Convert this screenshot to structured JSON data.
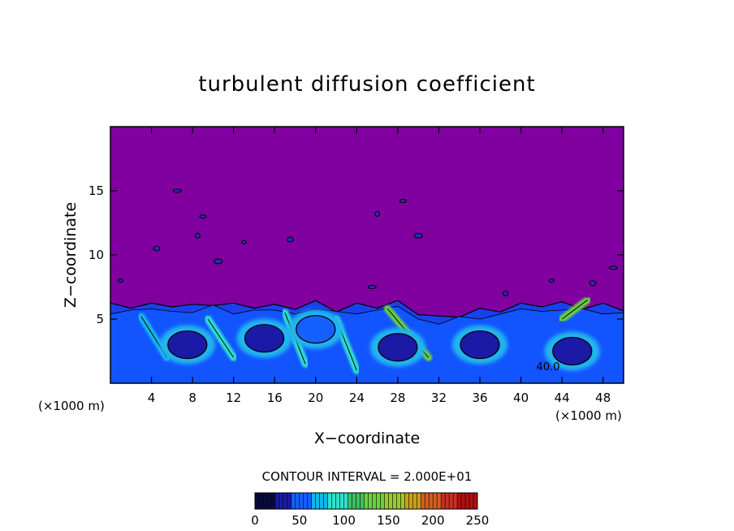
{
  "chart_data": {
    "type": "heatmap",
    "title": "turbulent diffusion coefficient",
    "xlabel": "X−coordinate",
    "ylabel": "Z−coordinate",
    "x_unit_left": "(×1000 m)",
    "x_unit_right": "(×1000 m)",
    "xlim": [
      0,
      50
    ],
    "ylim": [
      0,
      20
    ],
    "x_ticks": [
      4,
      8,
      12,
      16,
      20,
      24,
      28,
      32,
      36,
      40,
      44,
      48
    ],
    "y_ticks": [
      5,
      10,
      15
    ],
    "background_value": 0,
    "turbulent_layer_top": [
      [
        0,
        6.0
      ],
      [
        2,
        6.1
      ],
      [
        4,
        6.0
      ],
      [
        6,
        6.2
      ],
      [
        8,
        5.9
      ],
      [
        10,
        6.3
      ],
      [
        12,
        6.0
      ],
      [
        14,
        6.1
      ],
      [
        16,
        5.9
      ],
      [
        18,
        6.0
      ],
      [
        20,
        6.2
      ],
      [
        22,
        5.8
      ],
      [
        24,
        6.0
      ],
      [
        26,
        6.1
      ],
      [
        28,
        6.2
      ],
      [
        30,
        5.6
      ],
      [
        32,
        5.0
      ],
      [
        34,
        5.4
      ],
      [
        36,
        5.6
      ],
      [
        38,
        5.8
      ],
      [
        40,
        6.0
      ],
      [
        42,
        6.2
      ],
      [
        44,
        6.1
      ],
      [
        46,
        6.0
      ],
      [
        48,
        6.0
      ],
      [
        50,
        5.9
      ]
    ],
    "eddy_cores": [
      {
        "x": 7.5,
        "z": 3.0,
        "value": 40
      },
      {
        "x": 15.0,
        "z": 3.5,
        "value": 40
      },
      {
        "x": 20.0,
        "z": 4.2,
        "value": 60
      },
      {
        "x": 28.0,
        "z": 2.8,
        "value": 40
      },
      {
        "x": 36.0,
        "z": 3.0,
        "value": 40
      },
      {
        "x": 45.0,
        "z": 2.5,
        "value": 40
      }
    ],
    "filaments": [
      {
        "x1": 9.5,
        "z1": 5.0,
        "x2": 12.0,
        "z2": 2.0,
        "value": 100
      },
      {
        "x1": 17.0,
        "z1": 5.5,
        "x2": 19.0,
        "z2": 1.5,
        "value": 90
      },
      {
        "x1": 27.0,
        "z1": 5.8,
        "x2": 31.0,
        "z2": 2.0,
        "value": 130
      },
      {
        "x1": 44.0,
        "z1": 5.0,
        "x2": 46.5,
        "z2": 6.5,
        "value": 140
      },
      {
        "x1": 3.0,
        "z1": 5.2,
        "x2": 5.5,
        "z2": 2.0,
        "value": 80
      },
      {
        "x1": 22.0,
        "z1": 5.0,
        "x2": 24.0,
        "z2": 1.0,
        "value": 90
      }
    ],
    "scattered_patches": [
      {
        "x": 1.0,
        "z": 8.0
      },
      {
        "x": 4.5,
        "z": 10.5
      },
      {
        "x": 6.5,
        "z": 15.0
      },
      {
        "x": 8.5,
        "z": 11.5
      },
      {
        "x": 9.0,
        "z": 13.0
      },
      {
        "x": 10.5,
        "z": 9.5
      },
      {
        "x": 13.0,
        "z": 11.0
      },
      {
        "x": 17.5,
        "z": 11.2
      },
      {
        "x": 25.5,
        "z": 7.5
      },
      {
        "x": 26.0,
        "z": 13.2
      },
      {
        "x": 28.5,
        "z": 14.2
      },
      {
        "x": 30.0,
        "z": 11.5
      },
      {
        "x": 43.0,
        "z": 8.0
      },
      {
        "x": 47.0,
        "z": 7.8
      },
      {
        "x": 49.0,
        "z": 9.0
      },
      {
        "x": 38.5,
        "z": 7.0
      }
    ],
    "contour_label": {
      "text": "40.0",
      "x": 41.5,
      "z": 1.0
    },
    "contour_interval_text": "CONTOUR INTERVAL = 2.000E+01",
    "colorbar": {
      "min": 0,
      "max": 250,
      "ticks": [
        0,
        50,
        100,
        150,
        200,
        250
      ],
      "colors": [
        "#0a0a3c",
        "#1a1aa6",
        "#1560ff",
        "#12b8e8",
        "#2ee0d0",
        "#3cc060",
        "#6ad040",
        "#9cc828",
        "#c8a018",
        "#d06020",
        "#c83020",
        "#b01010"
      ]
    },
    "background_color": "#8000a0",
    "grid": false,
    "legend": "bottom colorbar"
  }
}
